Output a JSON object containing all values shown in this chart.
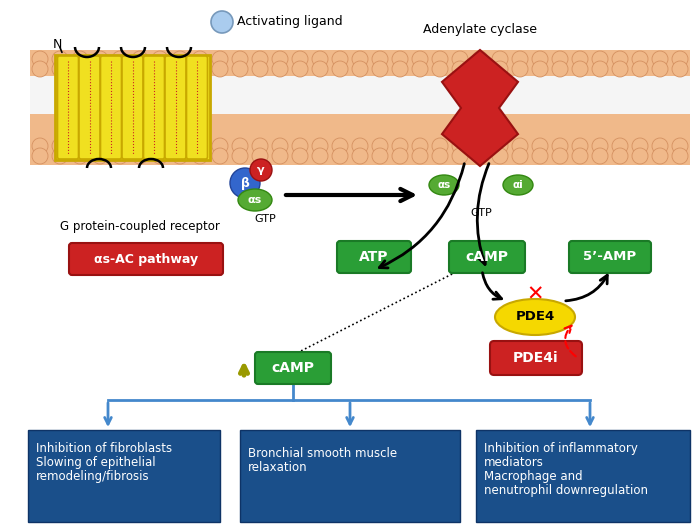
{
  "bg_color": "#ffffff",
  "membrane_color": "#f0b98a",
  "membrane_outline": "#d49060",
  "receptor_color": "#f0e020",
  "receptor_outline": "#c8a800",
  "adenylate_color": "#cc2222",
  "adenylate_outline": "#991111",
  "gprotein_beta_color": "#3366cc",
  "gprotein_gamma_color": "#cc2222",
  "gprotein_alpha_color": "#55aa33",
  "ligand_color": "#aaccee",
  "ligand_outline": "#7799bb",
  "box_green": "#2a9e36",
  "box_green_dark": "#1a7a26",
  "box_red": "#cc2222",
  "box_red_dark": "#991111",
  "box_blue": "#1a4f8a",
  "box_blue_dark": "#0e3366",
  "box_yellow": "#f5d800",
  "box_yellow_dark": "#c8a800",
  "arrow_blue": "#4488cc",
  "arrow_black": "#111111",
  "text_white": "#ffffff",
  "text_black": "#111111",
  "activating_ligand_text": "Activating ligand",
  "adenylate_cyclase_text": "Adenylate cyclase",
  "g_receptor_text": "G protein-coupled receptor",
  "gtp_text": "GTP",
  "atp_text": "ATP",
  "camp_text": "cAMP",
  "amp5_text": "5’-AMP",
  "pde4_text": "PDE4",
  "pde4i_text": "PDE4i",
  "pathway_text": "αs-AC pathway",
  "camp_up_text": "cAMP",
  "box1_line1": "Inhibition of fibroblasts",
  "box1_line2": "Slowing of epithelial",
  "box1_line3": "remodeling/fibrosis",
  "box2_line1": "Bronchial smooth muscle",
  "box2_line2": "relaxation",
  "box3_line1": "Inhibition of inflammatory",
  "box3_line2": "mediators",
  "box3_line3": "Macrophage and",
  "box3_line4": "nenutrophil downregulation",
  "alpha_s_text": "αs",
  "alpha_i_text": "αi",
  "beta_text": "β",
  "gamma_text": "γ",
  "N_text": "N"
}
